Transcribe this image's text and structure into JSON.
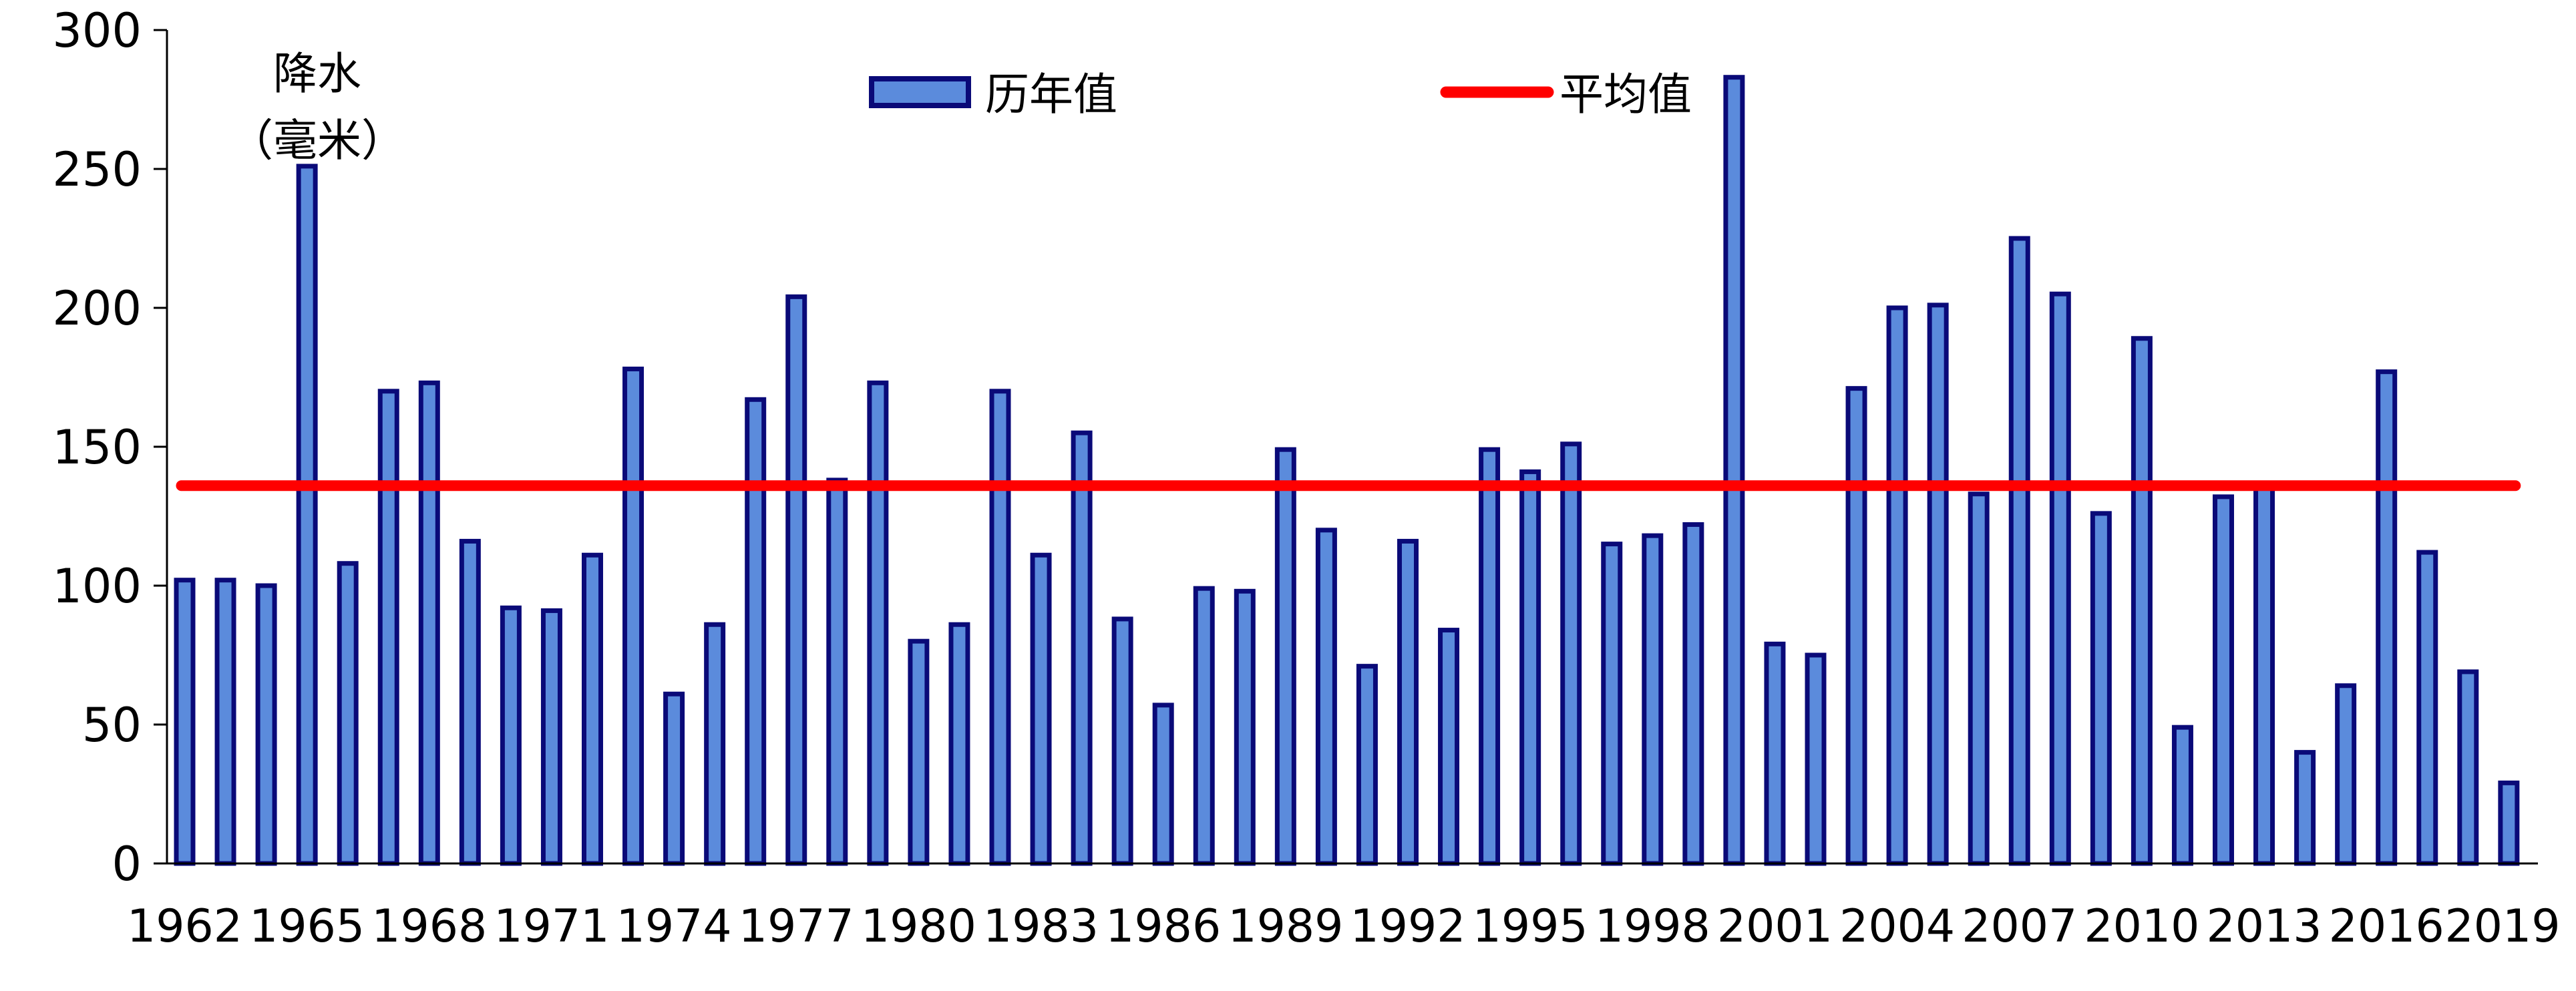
{
  "chart_data": {
    "type": "bar",
    "ylabel": "降水（毫米）",
    "ylabel_line1": "降水",
    "ylabel_line2": "（毫米）",
    "ylim": [
      0,
      300
    ],
    "yticks": [
      0,
      50,
      100,
      150,
      200,
      250,
      300
    ],
    "x_tick_labels": [
      "1962",
      "1965",
      "1968",
      "1971",
      "1974",
      "1977",
      "1980",
      "1983",
      "1986",
      "1989",
      "1992",
      "1995",
      "1998",
      "2001",
      "2004",
      "2007",
      "2010",
      "2013",
      "2016",
      "2019"
    ],
    "categories": [
      1962,
      1963,
      1964,
      1965,
      1966,
      1967,
      1968,
      1969,
      1970,
      1971,
      1972,
      1973,
      1974,
      1975,
      1976,
      1977,
      1978,
      1979,
      1980,
      1981,
      1982,
      1983,
      1984,
      1985,
      1986,
      1987,
      1988,
      1989,
      1990,
      1991,
      1992,
      1993,
      1994,
      1995,
      1996,
      1997,
      1998,
      1999,
      2000,
      2001,
      2002,
      2003,
      2004,
      2005,
      2006,
      2007,
      2008,
      2009,
      2010,
      2011,
      2012,
      2013,
      2014,
      2015,
      2016,
      2017,
      2018,
      2019
    ],
    "series": [
      {
        "name": "历年值",
        "type": "bar",
        "values": [
          102,
          102,
          100,
          251,
          108,
          170,
          173,
          116,
          92,
          91,
          111,
          178,
          61,
          86,
          167,
          204,
          138,
          173,
          80,
          86,
          170,
          111,
          155,
          88,
          57,
          99,
          98,
          149,
          120,
          71,
          116,
          84,
          149,
          141,
          151,
          115,
          118,
          122,
          283,
          79,
          75,
          171,
          200,
          201,
          133,
          225,
          205,
          126,
          189,
          49,
          132,
          135,
          40,
          64,
          177,
          112,
          69,
          29
        ]
      },
      {
        "name": "平均值",
        "type": "line",
        "value": 136
      }
    ],
    "legend": [
      "历年值",
      "平均值"
    ],
    "legend_position": "top-center",
    "grid": false,
    "colors": {
      "bar_fill": "#5B8BDC",
      "bar_stroke": "#0A0A78",
      "mean_line": "#FF0000",
      "axis": "#000000"
    }
  }
}
